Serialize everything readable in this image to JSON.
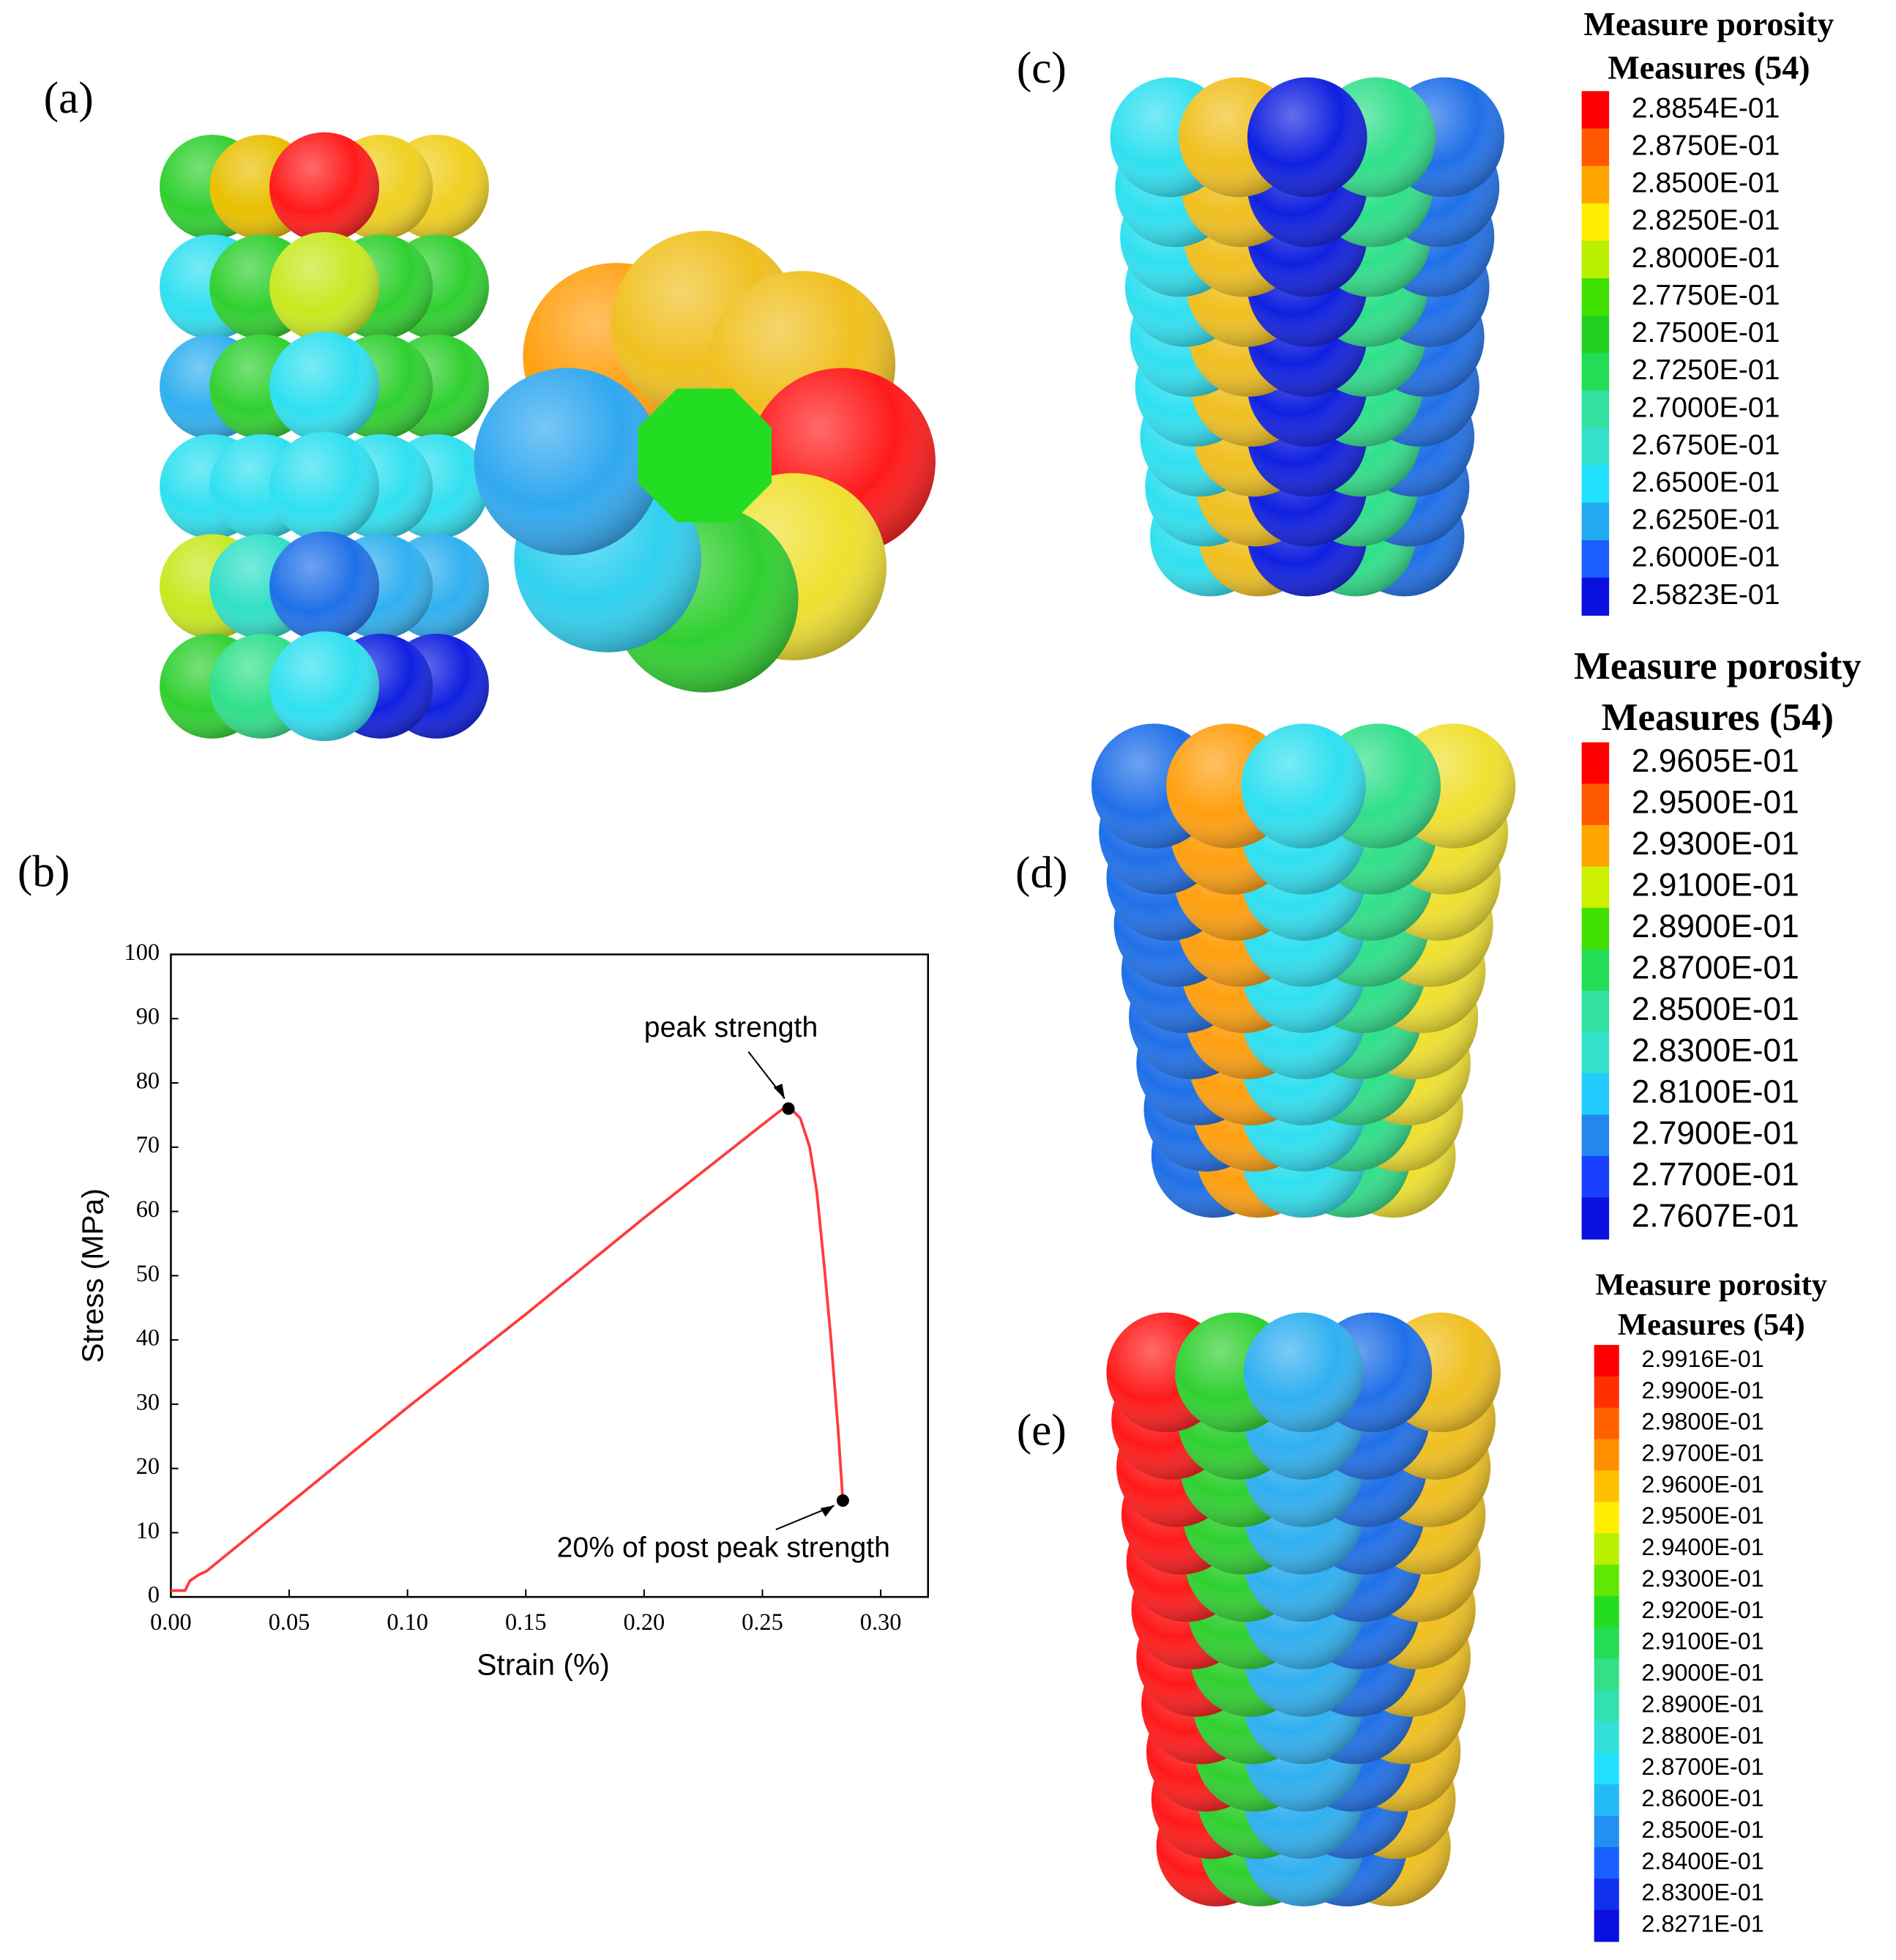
{
  "panels": {
    "a": "(a)",
    "b": "(b)",
    "c": "(c)",
    "d": "(d)",
    "e": "(e)"
  },
  "colorbars": [
    {
      "title": "Measure porosity",
      "subtitle": "Measures (54)",
      "labels": [
        "2.8854E-01",
        "2.8750E-01",
        "2.8500E-01",
        "2.8250E-01",
        "2.8000E-01",
        "2.7750E-01",
        "2.7500E-01",
        "2.7250E-01",
        "2.7000E-01",
        "2.6750E-01",
        "2.6500E-01",
        "2.6250E-01",
        "2.6000E-01",
        "2.5823E-01"
      ],
      "colors": [
        "#ff0000",
        "#ff5a00",
        "#ffa500",
        "#ffee00",
        "#b8f000",
        "#40e000",
        "#22d022",
        "#22dd55",
        "#33e0a0",
        "#33e0cc",
        "#22e0ff",
        "#22aaf0",
        "#1a60ff",
        "#0a10e0"
      ]
    },
    {
      "title": "Measure porosity",
      "subtitle": "Measures (54)",
      "labels": [
        "2.9605E-01",
        "2.9500E-01",
        "2.9300E-01",
        "2.9100E-01",
        "2.8900E-01",
        "2.8700E-01",
        "2.8500E-01",
        "2.8300E-01",
        "2.8100E-01",
        "2.7900E-01",
        "2.7700E-01",
        "2.7607E-01"
      ],
      "colors": [
        "#ff0000",
        "#ff5a00",
        "#ffa500",
        "#ccf000",
        "#40e000",
        "#22dd55",
        "#33e0a0",
        "#33e0cc",
        "#22ccff",
        "#2288f0",
        "#1a40ff",
        "#0a10e0"
      ]
    },
    {
      "title": "Measure porosity",
      "subtitle": "Measures (54)",
      "labels": [
        "2.9916E-01",
        "2.9900E-01",
        "2.9800E-01",
        "2.9700E-01",
        "2.9600E-01",
        "2.9500E-01",
        "2.9400E-01",
        "2.9300E-01",
        "2.9200E-01",
        "2.9100E-01",
        "2.9000E-01",
        "2.8900E-01",
        "2.8800E-01",
        "2.8700E-01",
        "2.8600E-01",
        "2.8500E-01",
        "2.8400E-01",
        "2.8300E-01",
        "2.8271E-01"
      ],
      "colors": [
        "#ff0000",
        "#ff3000",
        "#ff6000",
        "#ff9000",
        "#ffc000",
        "#ffee00",
        "#b8f000",
        "#60e800",
        "#22dd22",
        "#22dd55",
        "#33e088",
        "#33e0b0",
        "#33e0d8",
        "#22e0ff",
        "#22bbf8",
        "#2290f0",
        "#1a60ff",
        "#1030f0",
        "#0a10e0"
      ]
    }
  ],
  "chart_data": {
    "type": "line",
    "x_label": "Strain (%)",
    "y_label": "Stress (MPa)",
    "xlim": [
      0,
      0.32
    ],
    "ylim": [
      0,
      100
    ],
    "xticks": [
      {
        "value": 0,
        "label": "0.00"
      },
      0.05,
      {
        "value": 0.1,
        "label": "0.10"
      },
      0.15,
      {
        "value": 0.2,
        "label": "0.20"
      },
      0.25,
      {
        "value": 0.3,
        "label": "0.30"
      }
    ],
    "yticks": [
      0,
      10,
      20,
      30,
      40,
      50,
      60,
      70,
      80,
      90,
      100
    ],
    "series": [
      {
        "color": "#ff3b3b",
        "x": [
          0,
          0.006,
          0.008,
          0.012,
          0.015,
          0.05,
          0.1,
          0.15,
          0.2,
          0.25,
          0.258,
          0.262,
          0.266,
          0.27,
          0.273,
          0.276,
          0.279,
          0.282,
          0.284
        ],
        "values": [
          1,
          1,
          2.5,
          3.5,
          4,
          14.5,
          29.5,
          44,
          59,
          73.5,
          75.8,
          76,
          74.5,
          70,
          63,
          52,
          40,
          26,
          15
        ]
      },
      {
        "color": "#000000",
        "x": [
          0.261,
          0.284
        ],
        "values": [
          76,
          15
        ]
      }
    ],
    "annotations": [
      "peak strength",
      "20% of post peak strength"
    ]
  }
}
